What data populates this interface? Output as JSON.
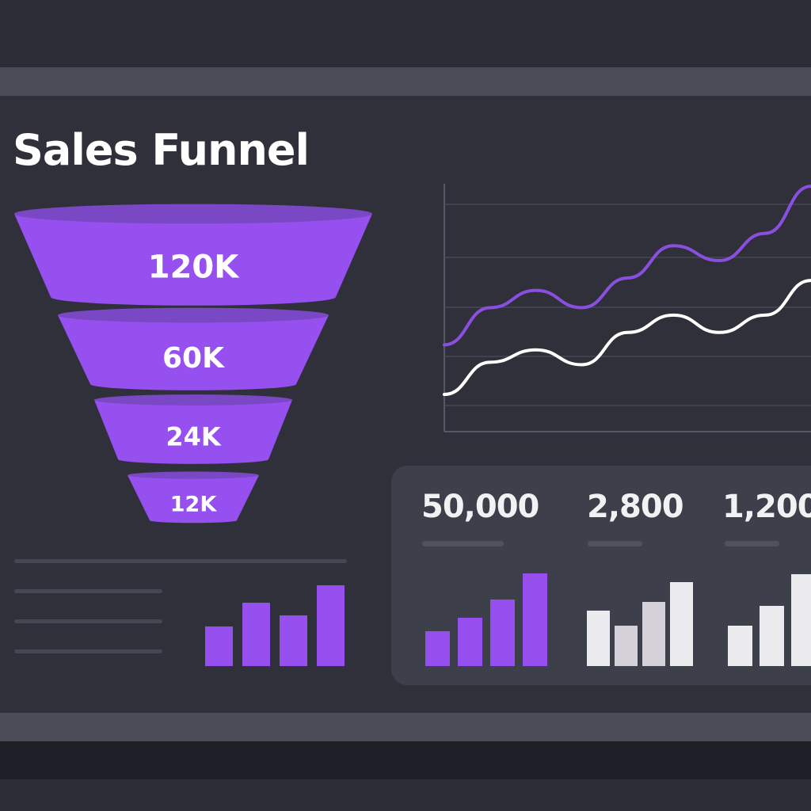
{
  "title": "Sales Funnel",
  "colors": {
    "accent": "#9650f0",
    "line_secondary": "#ffffff",
    "background": "#2f3039",
    "panel": "#3d3f4b"
  },
  "funnel": {
    "stages": [
      {
        "label": "120K",
        "value": 120000
      },
      {
        "label": "60K",
        "value": 60000
      },
      {
        "label": "24K",
        "value": 24000
      },
      {
        "label": "12K",
        "value": 12000
      }
    ]
  },
  "stats": [
    {
      "value": "50,000"
    },
    {
      "value": "2,800"
    },
    {
      "value": "1,200"
    }
  ],
  "chart_data": [
    {
      "type": "line",
      "title": "",
      "grid": true,
      "ylim": [
        0,
        100
      ],
      "series": [
        {
          "color": "#8a4fe0",
          "values": [
            35,
            50,
            57,
            50,
            62,
            75,
            69,
            80,
            99
          ]
        },
        {
          "color": "#ffffff",
          "values": [
            15,
            28,
            33,
            27,
            40,
            47,
            40,
            47,
            61
          ]
        }
      ]
    },
    {
      "type": "bar",
      "color": "#9650f0",
      "values": [
        50,
        80,
        64,
        102
      ]
    },
    {
      "type": "bar",
      "color": "#9650f0",
      "values": [
        44,
        61,
        84,
        117
      ]
    },
    {
      "type": "bar",
      "color": "#ececef",
      "values": [
        70,
        51,
        81,
        106
      ]
    },
    {
      "type": "bar",
      "color": "#ececef",
      "values": [
        51,
        76,
        116
      ]
    }
  ]
}
